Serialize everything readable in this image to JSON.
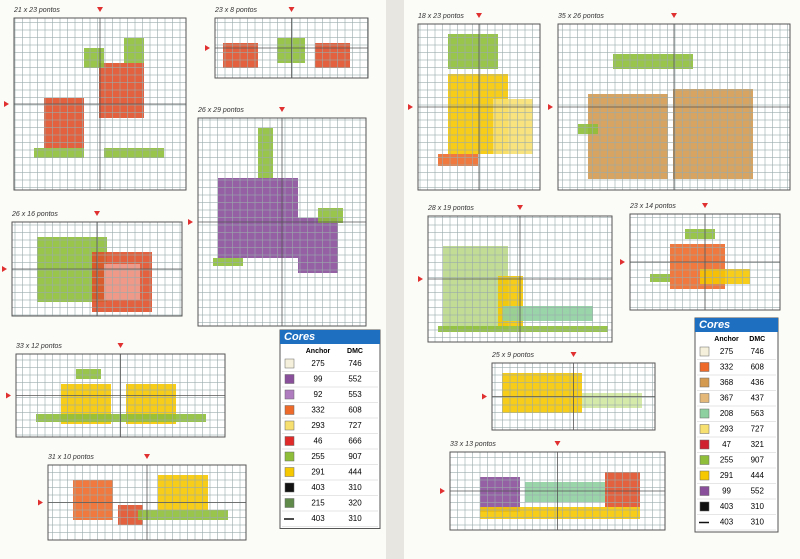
{
  "patterns": [
    {
      "label": "21 x 23 pontos"
    },
    {
      "label": "23 x 8 pontos"
    },
    {
      "label": "26 x 29 pontos"
    },
    {
      "label": "26 x 16 pontos"
    },
    {
      "label": "33 x 12 pontos"
    },
    {
      "label": "31 x 10 pontos"
    },
    {
      "label": "18 x 23 pontos"
    },
    {
      "label": "35 x 26 pontos"
    },
    {
      "label": "28 x 19 pontos"
    },
    {
      "label": "23 x 14 pontos"
    },
    {
      "label": "25 x 9 pontos"
    },
    {
      "label": "33 x 13 pontos"
    }
  ],
  "keys": [
    {
      "title": "Cores",
      "anchor_header": "Anchor",
      "dmc_header": "DMC",
      "rows": [
        {
          "anchor": "275",
          "dmc": "746",
          "color": "#f5f0dc"
        },
        {
          "anchor": "99",
          "dmc": "552",
          "color": "#8a4f9a"
        },
        {
          "anchor": "92",
          "dmc": "553",
          "color": "#b07cc0"
        },
        {
          "anchor": "332",
          "dmc": "608",
          "color": "#ee6a2a"
        },
        {
          "anchor": "293",
          "dmc": "727",
          "color": "#f8e070"
        },
        {
          "anchor": "46",
          "dmc": "666",
          "color": "#e02a2a"
        },
        {
          "anchor": "255",
          "dmc": "907",
          "color": "#8fbf3a"
        },
        {
          "anchor": "291",
          "dmc": "444",
          "color": "#f6c800"
        },
        {
          "anchor": "403",
          "dmc": "310",
          "color": "#111111"
        },
        {
          "anchor": "215",
          "dmc": "320",
          "color": "#5f8a4a"
        },
        {
          "anchor": "403",
          "dmc": "310",
          "color": "line"
        }
      ]
    },
    {
      "title": "Cores",
      "anchor_header": "Anchor",
      "dmc_header": "DMC",
      "rows": [
        {
          "anchor": "275",
          "dmc": "746",
          "color": "#f5f0dc"
        },
        {
          "anchor": "332",
          "dmc": "608",
          "color": "#ee6a2a"
        },
        {
          "anchor": "368",
          "dmc": "436",
          "color": "#d49a50"
        },
        {
          "anchor": "367",
          "dmc": "437",
          "color": "#e4b878"
        },
        {
          "anchor": "208",
          "dmc": "563",
          "color": "#8fd0a0"
        },
        {
          "anchor": "293",
          "dmc": "727",
          "color": "#f8e070"
        },
        {
          "anchor": "47",
          "dmc": "321",
          "color": "#d02030"
        },
        {
          "anchor": "255",
          "dmc": "907",
          "color": "#8fbf3a"
        },
        {
          "anchor": "291",
          "dmc": "444",
          "color": "#f6c800"
        },
        {
          "anchor": "99",
          "dmc": "552",
          "color": "#8a4f9a"
        },
        {
          "anchor": "403",
          "dmc": "310",
          "color": "#111111"
        },
        {
          "anchor": "403",
          "dmc": "310",
          "color": "line"
        }
      ]
    }
  ]
}
